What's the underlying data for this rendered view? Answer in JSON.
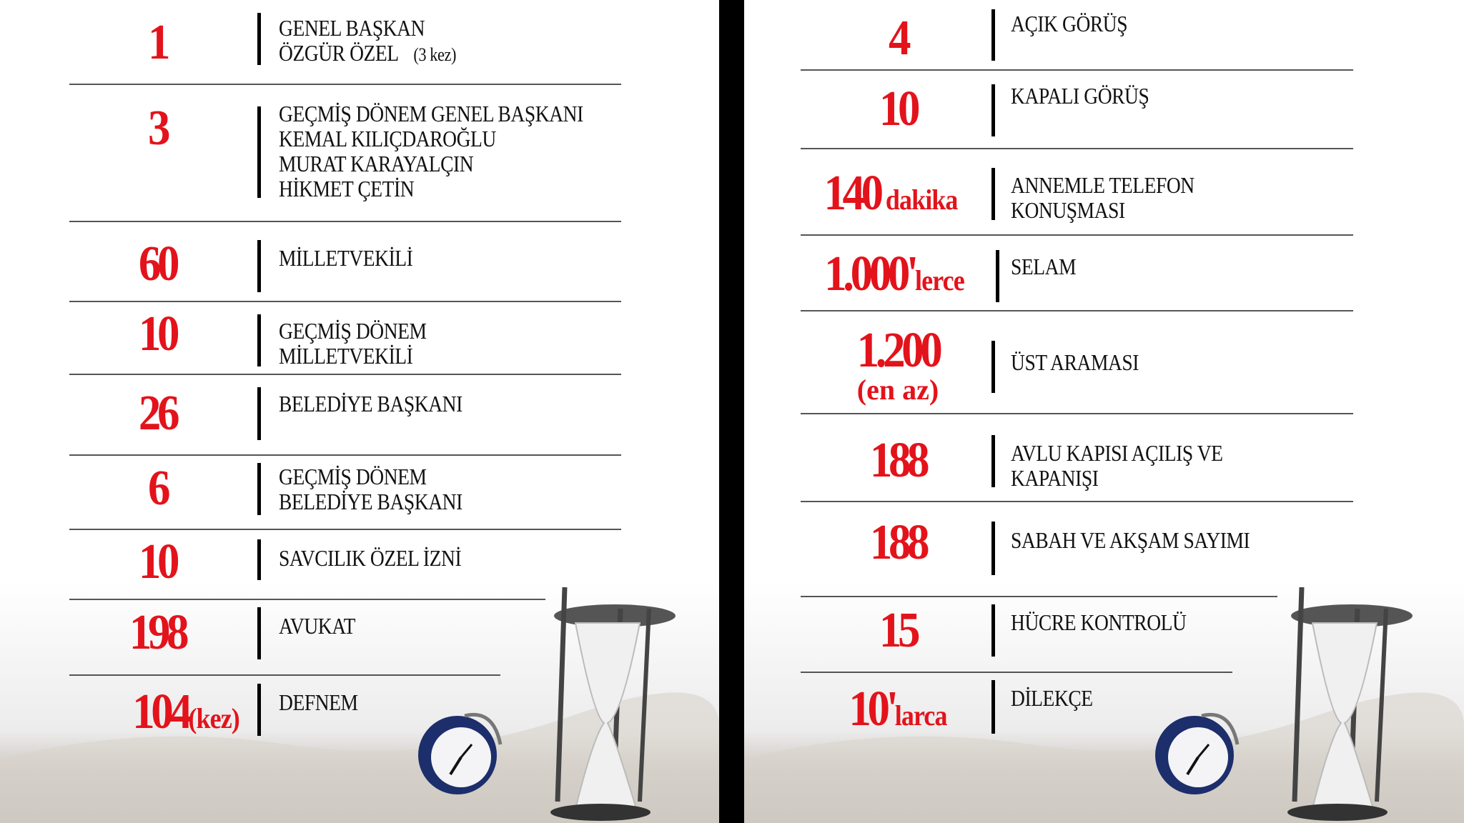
{
  "colors": {
    "accent": "#e3131b",
    "text": "#111111",
    "divider": "#000000"
  },
  "left": {
    "rows": [
      {
        "number": "1",
        "lines": [
          "GENEL BAŞKAN",
          "ÖZGÜR ÖZEL"
        ],
        "note": "(3 kez)"
      },
      {
        "number": "3",
        "lines": [
          "GEÇMİŞ DÖNEM GENEL BAŞKANI",
          "KEMAL KILIÇDAROĞLU",
          "MURAT KARAYALÇIN",
          "HİKMET ÇETİN"
        ]
      },
      {
        "number": "60",
        "lines": [
          "MİLLETVEKİLİ"
        ]
      },
      {
        "number": "10",
        "lines": [
          "GEÇMİŞ DÖNEM",
          "MİLLETVEKİLİ"
        ]
      },
      {
        "number": "26",
        "lines": [
          "BELEDİYE BAŞKANI"
        ]
      },
      {
        "number": "6",
        "lines": [
          "GEÇMİŞ DÖNEM",
          "BELEDİYE BAŞKANI"
        ]
      },
      {
        "number": "10",
        "lines": [
          "SAVCILIK ÖZEL İZNİ"
        ]
      },
      {
        "number": "198",
        "lines": [
          "AVUKAT"
        ]
      },
      {
        "number": "104",
        "suffix": "(kez)",
        "lines": [
          "DEFNEM"
        ]
      }
    ]
  },
  "right": {
    "rows": [
      {
        "number": "4",
        "lines": [
          "AÇIK GÖRÜŞ"
        ]
      },
      {
        "number": "10",
        "lines": [
          "KAPALI GÖRÜŞ"
        ]
      },
      {
        "number": "140",
        "suffix": " dakika",
        "lines": [
          "ANNEMLE TELEFON",
          "KONUŞMASI"
        ]
      },
      {
        "number": "1.000'",
        "suffix": "lerce",
        "lines": [
          "SELAM"
        ]
      },
      {
        "number": "1.200",
        "sub": "(en az)",
        "lines": [
          "ÜST ARAMASI"
        ]
      },
      {
        "number": "188",
        "lines": [
          "AVLU KAPISI AÇILIŞ VE",
          "KAPANIŞI"
        ]
      },
      {
        "number": "188",
        "lines": [
          "SABAH VE AKŞAM SAYIMI"
        ]
      },
      {
        "number": "15",
        "lines": [
          "HÜCRE KONTROLÜ"
        ]
      },
      {
        "number": "10'",
        "suffix": "larca",
        "lines": [
          "DİLEKÇE"
        ]
      }
    ]
  },
  "illustration": {
    "icons": [
      "hourglass-icon",
      "alarm-clock-icon"
    ]
  }
}
